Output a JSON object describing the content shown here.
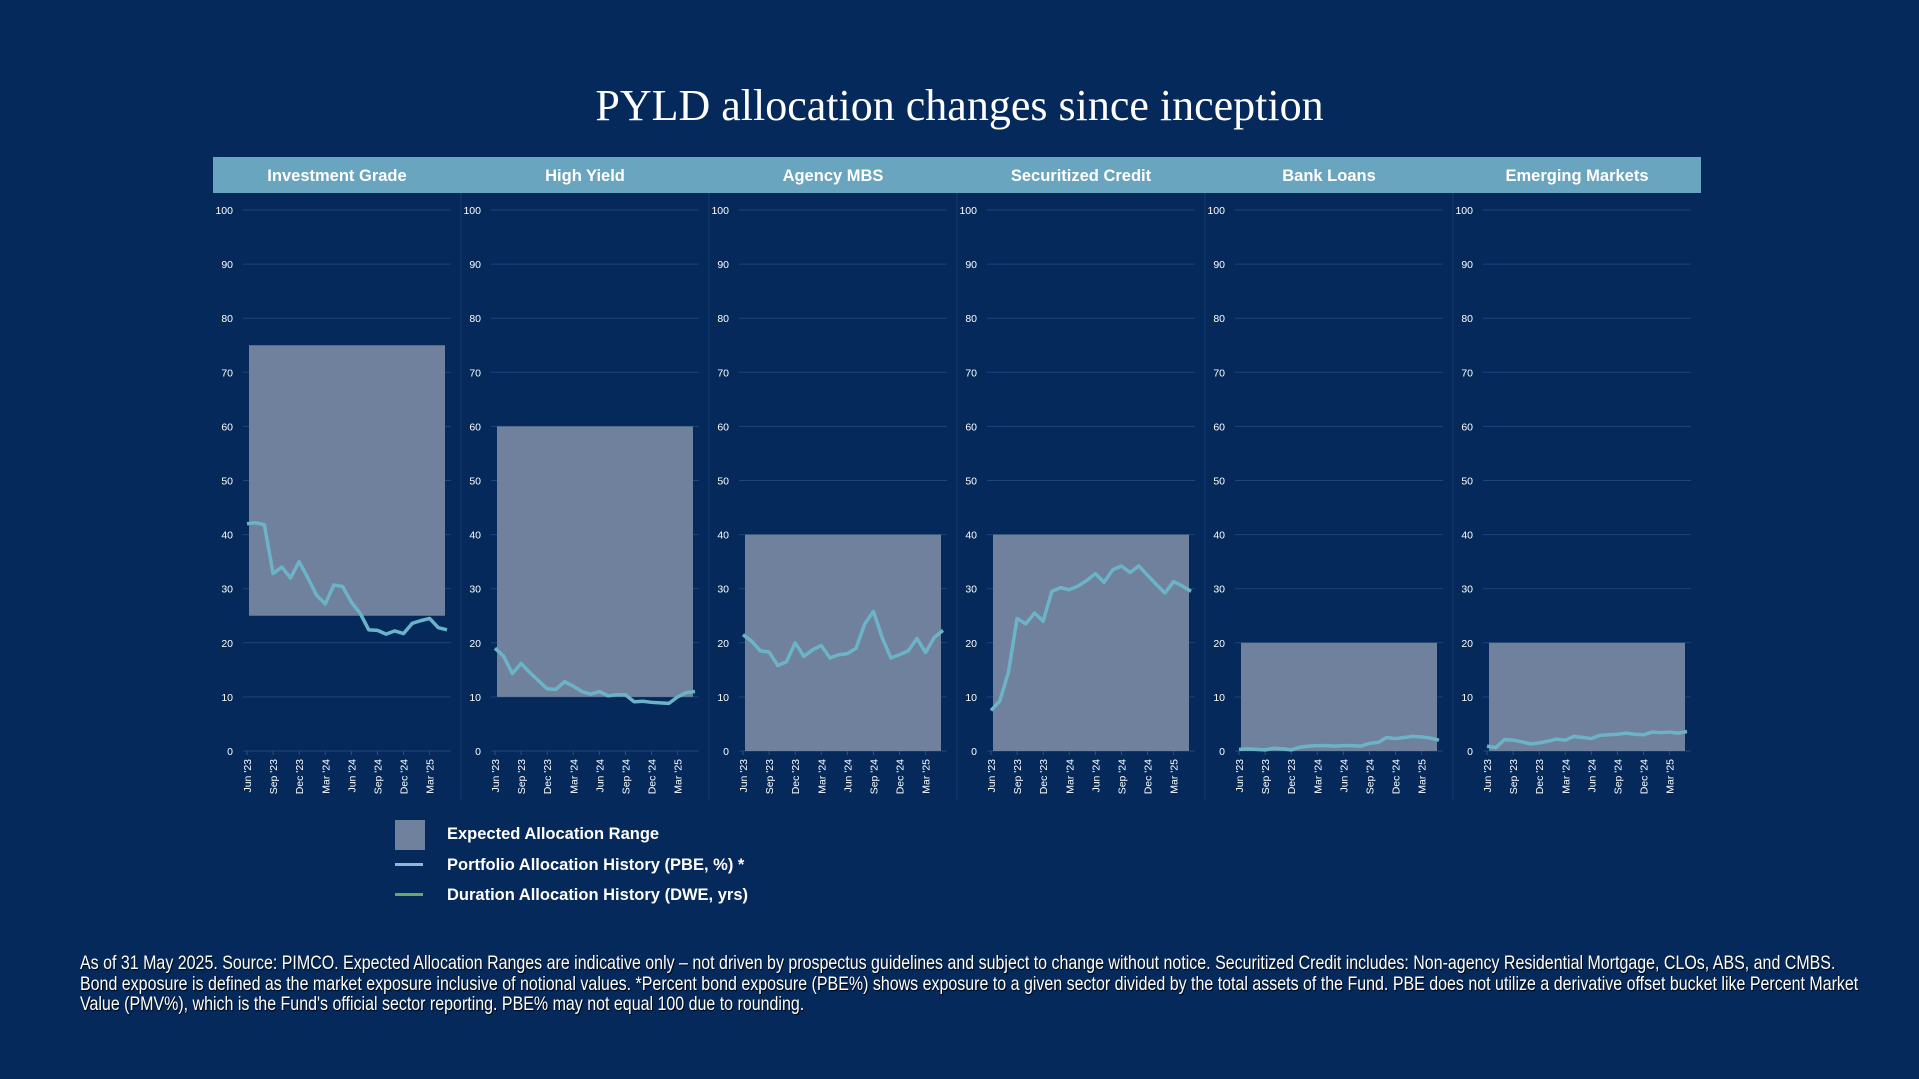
{
  "title": "PYLD allocation changes since inception",
  "colors": {
    "background": "#04295a",
    "header_bar": "#6aa5c0",
    "range_fill": "#6f819c",
    "pbe_line": "#6db3c8",
    "dwe_line": "#6aa86a",
    "grid": "#1f4675"
  },
  "chart_data": {
    "type": "line",
    "x_tick_labels": [
      "Jun '23",
      "Sep '23",
      "Dec '23",
      "Mar '24",
      "Jun '24",
      "Sep '24",
      "Dec '24",
      "Mar '25"
    ],
    "x_periods": "monthly, Jun 2023 - May 2025",
    "y_ticks": [
      0,
      10,
      20,
      30,
      40,
      50,
      60,
      70,
      80,
      90,
      100
    ],
    "ylim": [
      0,
      100
    ],
    "grid": true,
    "panels": [
      {
        "title": "Investment Grade",
        "range": [
          25,
          75
        ],
        "values": [
          42,
          42.2,
          41.8,
          32.8,
          34,
          32,
          35,
          32,
          28.8,
          27.2,
          30.7,
          30.4,
          27.5,
          25.5,
          22.4,
          22.3,
          21.6,
          22.2,
          21.7,
          23.6,
          24.1,
          24.5,
          22.8,
          22.4
        ]
      },
      {
        "title": "High Yield",
        "range": [
          10,
          60
        ],
        "values": [
          19,
          17.5,
          14.3,
          16.2,
          14.5,
          13,
          11.5,
          11.4,
          12.8,
          12,
          11,
          10.5,
          11,
          10.2,
          10.4,
          10.4,
          9.1,
          9.2,
          9,
          8.9,
          8.8,
          10,
          10.8,
          11
        ]
      },
      {
        "title": "Agency MBS",
        "range": [
          0,
          40
        ],
        "values": [
          21.5,
          20.3,
          18.5,
          18.3,
          15.8,
          16.5,
          20,
          17.5,
          18.7,
          19.5,
          17.2,
          17.8,
          18,
          19,
          23.5,
          25.8,
          21,
          17.2,
          17.8,
          18.5,
          20.8,
          18.2,
          21,
          22.3
        ]
      },
      {
        "title": "Securitized Credit",
        "range": [
          0,
          40
        ],
        "values": [
          7.5,
          9.2,
          14.5,
          24.5,
          23.5,
          25.5,
          24,
          29.5,
          30.2,
          29.8,
          30.5,
          31.5,
          32.8,
          31.2,
          33.5,
          34.2,
          33,
          34.2,
          32.5,
          30.8,
          29.2,
          31.3,
          30.5,
          29.5
        ]
      },
      {
        "title": "Bank Loans",
        "range": [
          0,
          20
        ],
        "values": [
          0.3,
          0.4,
          0.3,
          0.2,
          0.5,
          0.4,
          0.2,
          0.7,
          0.9,
          1,
          1,
          0.9,
          1,
          1,
          0.9,
          1.4,
          1.6,
          2.5,
          2.3,
          2.5,
          2.7,
          2.6,
          2.4,
          2
        ]
      },
      {
        "title": "Emerging Markets",
        "range": [
          0,
          20
        ],
        "values": [
          0.9,
          0.6,
          2.1,
          2,
          1.7,
          1.3,
          1.5,
          1.8,
          2.2,
          2,
          2.7,
          2.5,
          2.3,
          2.9,
          3,
          3.1,
          3.3,
          3.1,
          3,
          3.5,
          3.4,
          3.5,
          3.3,
          3.6
        ]
      }
    ],
    "legend": [
      {
        "label": "Expected Allocation Range",
        "kind": "box"
      },
      {
        "label": "Portfolio Allocation History (PBE, %) *",
        "kind": "line"
      },
      {
        "label": "Duration Allocation History (DWE, yrs)",
        "kind": "line"
      }
    ],
    "legend_placement": "bottom-left"
  },
  "footnote": "As of 31 May 2025. Source: PIMCO. Expected Allocation Ranges are indicative only – not driven by prospectus guidelines and subject to change without notice. Securitized Credit includes: Non-agency Residential Mortgage, CLOs, ABS, and CMBS. Bond exposure is defined as the market exposure inclusive of notional values. *Percent bond exposure (PBE%) shows exposure to a given sector divided by the total assets of the Fund. PBE does not utilize a derivative offset bucket like Percent Market Value (PMV%), which is the Fund's official sector reporting. PBE% may not equal 100 due to rounding."
}
